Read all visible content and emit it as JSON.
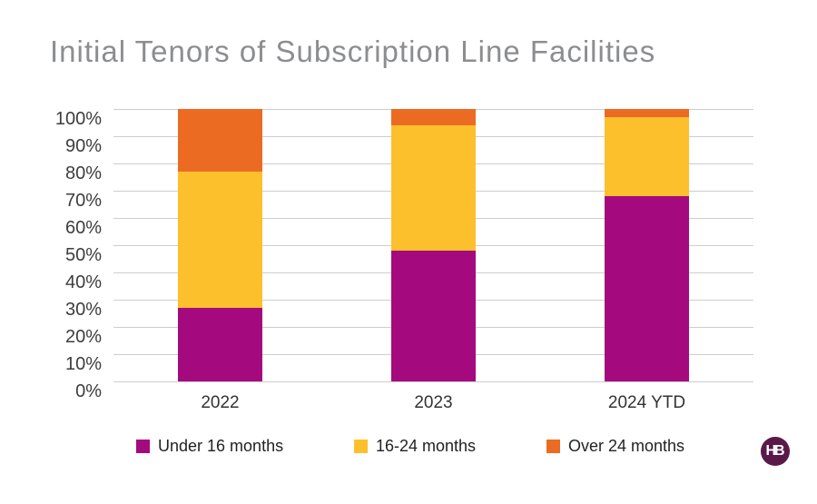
{
  "title": "Initial Tenors of Subscription Line Facilities",
  "logo": {
    "text": "HB",
    "bg_color": "#5a1a49",
    "text_color": "#ffffff"
  },
  "colors": {
    "background": "#ffffff",
    "title_text": "#8c8d90",
    "axis_text": "#3d3d3d",
    "gridline": "#cdcdcd"
  },
  "chart_data": {
    "type": "bar",
    "stacked": true,
    "title": "Initial Tenors of Subscription Line Facilities",
    "categories": [
      "2022",
      "2023",
      "2024 YTD"
    ],
    "series": [
      {
        "name": "Under 16 months",
        "color": "#a40a7e",
        "values": [
          27,
          48,
          68
        ]
      },
      {
        "name": "16-24 months",
        "color": "#fcc02d",
        "values": [
          50,
          46,
          29
        ]
      },
      {
        "name": "Over 24 months",
        "color": "#ec6b23",
        "values": [
          23,
          6,
          3
        ]
      }
    ],
    "xlabel": "",
    "ylabel": "",
    "ylim": [
      0,
      100
    ],
    "yticks": [
      "0%",
      "10%",
      "20%",
      "30%",
      "40%",
      "50%",
      "60%",
      "70%",
      "80%",
      "90%",
      "100%"
    ],
    "grid": true,
    "legend_position": "bottom"
  }
}
